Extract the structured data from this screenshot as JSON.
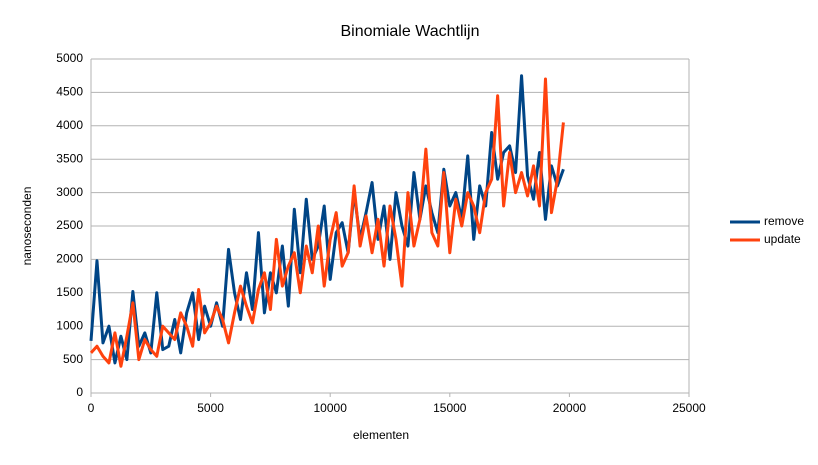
{
  "chart_data": {
    "type": "line",
    "title": "Binomiale Wachtlijn",
    "x_label": "elementen",
    "y_label": "nanoseconden",
    "x": [
      0,
      250,
      500,
      750,
      1000,
      1250,
      1500,
      1750,
      2000,
      2250,
      2500,
      2750,
      3000,
      3250,
      3500,
      3750,
      4000,
      4250,
      4500,
      4750,
      5000,
      5250,
      5500,
      5750,
      6000,
      6250,
      6500,
      6750,
      7000,
      7250,
      7500,
      7750,
      8000,
      8250,
      8500,
      8750,
      9000,
      9250,
      9500,
      9750,
      10000,
      10250,
      10500,
      10750,
      11000,
      11250,
      11500,
      11750,
      12000,
      12250,
      12500,
      12750,
      13000,
      13250,
      13500,
      13750,
      14000,
      14250,
      14500,
      14750,
      15000,
      15250,
      15500,
      15750,
      16000,
      16250,
      16500,
      16750,
      17000,
      17250,
      17500,
      17750,
      18000,
      18250,
      18500,
      18750,
      19000,
      19250,
      19500,
      19750
    ],
    "series": [
      {
        "name": "remove",
        "color": "#004586",
        "values": [
          780,
          1980,
          750,
          1000,
          450,
          850,
          500,
          1520,
          700,
          900,
          600,
          1500,
          650,
          700,
          1100,
          600,
          1200,
          1500,
          800,
          1300,
          1000,
          1350,
          1000,
          2150,
          1500,
          1100,
          1800,
          1250,
          2400,
          1200,
          1800,
          1500,
          2200,
          1300,
          2750,
          1800,
          2900,
          2000,
          2200,
          2800,
          1700,
          2400,
          2550,
          2100,
          3000,
          2300,
          2700,
          3150,
          2300,
          2800,
          2000,
          3000,
          2500,
          2200,
          3300,
          2600,
          3100,
          2700,
          2400,
          3350,
          2800,
          3000,
          2600,
          3550,
          2300,
          3100,
          2800,
          3900,
          3200,
          3600,
          3700,
          3300,
          4750,
          3250,
          2900,
          3600,
          2600,
          3400,
          3100,
          3350
        ]
      },
      {
        "name": "update",
        "color": "#ff420e",
        "values": [
          600,
          700,
          550,
          450,
          900,
          400,
          850,
          1350,
          500,
          800,
          650,
          550,
          1000,
          900,
          800,
          1200,
          1000,
          700,
          1550,
          900,
          1050,
          1300,
          1100,
          750,
          1200,
          1600,
          1300,
          1050,
          1550,
          1800,
          1250,
          2300,
          1600,
          1900,
          2100,
          1500,
          2200,
          1800,
          2500,
          1600,
          2300,
          2700,
          1900,
          2100,
          3100,
          2200,
          2650,
          2100,
          2600,
          1900,
          2800,
          2300,
          1600,
          3000,
          2200,
          2600,
          3650,
          2400,
          2200,
          3300,
          2100,
          2900,
          2500,
          3000,
          2800,
          2400,
          3000,
          3200,
          4450,
          2800,
          3600,
          3000,
          3300,
          2950,
          3400,
          2800,
          4700,
          2700,
          3200,
          4050
        ]
      }
    ],
    "xlim": [
      0,
      25000
    ],
    "xticks": [
      0,
      5000,
      10000,
      15000,
      20000,
      25000
    ],
    "ylim": [
      0,
      5000
    ],
    "yticks": [
      0,
      500,
      1000,
      1500,
      2000,
      2500,
      3000,
      3500,
      4000,
      4500,
      5000
    ],
    "grid": true,
    "legend": "right"
  }
}
